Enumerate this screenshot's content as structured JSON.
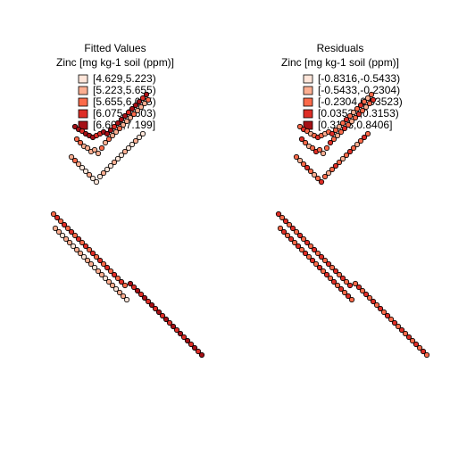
{
  "chart_data": [
    {
      "type": "scatter",
      "title": "Fitted Values",
      "subtitle": "Zinc [mg kg-1 soil (ppm)]",
      "legend": {
        "placement": "top",
        "entries": [
          "[4.629,5.223)",
          "[5.223,5.655)",
          "[5.655,6.075)",
          "[6.075,6.603)",
          "[6.603,7.199]"
        ]
      },
      "colors": [
        "#fee5d9",
        "#fcae91",
        "#fb6a4a",
        "#de2d26",
        "#a50f15"
      ],
      "points": [
        [
          84,
          142,
          4
        ],
        [
          88,
          145,
          4
        ],
        [
          92,
          147,
          3
        ],
        [
          96,
          150,
          4
        ],
        [
          100,
          152,
          4
        ],
        [
          104,
          154,
          4
        ],
        [
          108,
          152,
          3
        ],
        [
          112,
          150,
          3
        ],
        [
          116,
          148,
          4
        ],
        [
          120,
          150,
          4
        ],
        [
          124,
          146,
          4
        ],
        [
          128,
          142,
          3
        ],
        [
          132,
          138,
          4
        ],
        [
          136,
          134,
          4
        ],
        [
          140,
          130,
          4
        ],
        [
          144,
          126,
          3
        ],
        [
          148,
          122,
          4
        ],
        [
          152,
          118,
          4
        ],
        [
          156,
          114,
          4
        ],
        [
          160,
          110,
          3
        ],
        [
          164,
          106,
          4
        ],
        [
          86,
          156,
          2
        ],
        [
          90,
          160,
          2
        ],
        [
          94,
          164,
          1
        ],
        [
          98,
          166,
          1
        ],
        [
          102,
          170,
          1
        ],
        [
          106,
          168,
          1
        ],
        [
          110,
          172,
          1
        ],
        [
          114,
          166,
          2
        ],
        [
          118,
          160,
          1
        ],
        [
          122,
          156,
          2
        ],
        [
          126,
          152,
          1
        ],
        [
          130,
          148,
          1
        ],
        [
          134,
          144,
          2
        ],
        [
          138,
          140,
          1
        ],
        [
          142,
          136,
          1
        ],
        [
          146,
          132,
          1
        ],
        [
          150,
          128,
          2
        ],
        [
          154,
          124,
          1
        ],
        [
          158,
          120,
          1
        ],
        [
          162,
          116,
          1
        ],
        [
          166,
          112,
          2
        ],
        [
          80,
          176,
          1
        ],
        [
          84,
          180,
          2
        ],
        [
          88,
          184,
          1
        ],
        [
          92,
          188,
          0
        ],
        [
          96,
          192,
          0
        ],
        [
          100,
          196,
          1
        ],
        [
          104,
          200,
          0
        ],
        [
          108,
          204,
          0
        ],
        [
          112,
          198,
          0
        ],
        [
          116,
          194,
          1
        ],
        [
          120,
          190,
          0
        ],
        [
          124,
          186,
          0
        ],
        [
          128,
          182,
          1
        ],
        [
          132,
          178,
          0
        ],
        [
          136,
          174,
          0
        ],
        [
          140,
          170,
          1
        ],
        [
          144,
          166,
          0
        ],
        [
          148,
          162,
          0
        ],
        [
          152,
          158,
          1
        ],
        [
          156,
          154,
          0
        ],
        [
          160,
          150,
          0
        ],
        [
          60,
          240,
          2
        ],
        [
          64,
          244,
          3
        ],
        [
          68,
          248,
          2
        ],
        [
          72,
          252,
          3
        ],
        [
          76,
          256,
          2
        ],
        [
          80,
          260,
          3
        ],
        [
          84,
          264,
          2
        ],
        [
          88,
          268,
          3
        ],
        [
          92,
          272,
          2
        ],
        [
          96,
          276,
          3
        ],
        [
          100,
          280,
          2
        ],
        [
          104,
          284,
          3
        ],
        [
          108,
          288,
          2
        ],
        [
          112,
          292,
          3
        ],
        [
          116,
          296,
          2
        ],
        [
          120,
          300,
          3
        ],
        [
          124,
          304,
          2
        ],
        [
          128,
          308,
          3
        ],
        [
          132,
          312,
          2
        ],
        [
          136,
          316,
          3
        ],
        [
          140,
          320,
          2
        ],
        [
          62,
          256,
          1
        ],
        [
          66,
          260,
          1
        ],
        [
          70,
          264,
          0
        ],
        [
          74,
          268,
          1
        ],
        [
          78,
          272,
          1
        ],
        [
          82,
          276,
          0
        ],
        [
          86,
          280,
          1
        ],
        [
          90,
          284,
          1
        ],
        [
          94,
          288,
          0
        ],
        [
          98,
          292,
          1
        ],
        [
          102,
          296,
          1
        ],
        [
          106,
          300,
          0
        ],
        [
          110,
          304,
          1
        ],
        [
          114,
          308,
          1
        ],
        [
          118,
          312,
          0
        ],
        [
          122,
          316,
          1
        ],
        [
          126,
          320,
          1
        ],
        [
          130,
          324,
          0
        ],
        [
          134,
          328,
          1
        ],
        [
          138,
          332,
          1
        ],
        [
          142,
          336,
          0
        ],
        [
          146,
          318,
          4
        ],
        [
          150,
          322,
          3
        ],
        [
          154,
          326,
          4
        ],
        [
          158,
          330,
          3
        ],
        [
          162,
          334,
          4
        ],
        [
          166,
          338,
          3
        ],
        [
          170,
          342,
          4
        ],
        [
          174,
          346,
          3
        ],
        [
          178,
          350,
          4
        ],
        [
          182,
          354,
          3
        ],
        [
          186,
          358,
          4
        ],
        [
          190,
          362,
          3
        ],
        [
          194,
          366,
          4
        ],
        [
          198,
          370,
          3
        ],
        [
          202,
          374,
          4
        ],
        [
          206,
          378,
          3
        ],
        [
          210,
          382,
          4
        ],
        [
          214,
          386,
          3
        ],
        [
          218,
          390,
          4
        ],
        [
          222,
          394,
          3
        ],
        [
          226,
          398,
          4
        ]
      ]
    },
    {
      "type": "scatter",
      "title": "Residuals",
      "subtitle": "Zinc [mg kg-1 soil (ppm)]",
      "legend": {
        "placement": "top",
        "entries": [
          "[-0.8316,-0.5433)",
          "[-0.5433,-0.2304)",
          "[-0.2304,0.03523)",
          "[0.03523,0.3153)",
          "[0.3153,0.8406]"
        ]
      },
      "colors": [
        "#fee5d9",
        "#fcae91",
        "#fb6a4a",
        "#de2d26",
        "#a50f15"
      ],
      "points": [
        [
          84,
          142,
          2
        ],
        [
          88,
          145,
          3
        ],
        [
          92,
          147,
          2
        ],
        [
          96,
          150,
          1
        ],
        [
          100,
          152,
          2
        ],
        [
          104,
          154,
          3
        ],
        [
          108,
          152,
          2
        ],
        [
          112,
          150,
          1
        ],
        [
          116,
          148,
          2
        ],
        [
          120,
          150,
          3
        ],
        [
          124,
          146,
          2
        ],
        [
          128,
          142,
          1
        ],
        [
          132,
          138,
          2
        ],
        [
          136,
          134,
          3
        ],
        [
          140,
          130,
          2
        ],
        [
          144,
          126,
          1
        ],
        [
          148,
          122,
          2
        ],
        [
          152,
          118,
          3
        ],
        [
          156,
          114,
          2
        ],
        [
          160,
          110,
          1
        ],
        [
          164,
          106,
          2
        ],
        [
          86,
          156,
          3
        ],
        [
          90,
          160,
          2
        ],
        [
          94,
          164,
          1
        ],
        [
          98,
          166,
          2
        ],
        [
          102,
          170,
          3
        ],
        [
          106,
          168,
          2
        ],
        [
          110,
          172,
          1
        ],
        [
          114,
          166,
          2
        ],
        [
          118,
          160,
          3
        ],
        [
          122,
          156,
          2
        ],
        [
          126,
          152,
          1
        ],
        [
          130,
          148,
          2
        ],
        [
          134,
          144,
          3
        ],
        [
          138,
          140,
          2
        ],
        [
          142,
          136,
          1
        ],
        [
          146,
          132,
          2
        ],
        [
          150,
          128,
          3
        ],
        [
          154,
          124,
          2
        ],
        [
          158,
          120,
          1
        ],
        [
          162,
          116,
          2
        ],
        [
          166,
          112,
          3
        ],
        [
          80,
          176,
          2
        ],
        [
          84,
          180,
          1
        ],
        [
          88,
          184,
          2
        ],
        [
          92,
          188,
          3
        ],
        [
          96,
          192,
          2
        ],
        [
          100,
          196,
          1
        ],
        [
          104,
          200,
          2
        ],
        [
          108,
          204,
          3
        ],
        [
          112,
          198,
          2
        ],
        [
          116,
          194,
          1
        ],
        [
          120,
          190,
          2
        ],
        [
          124,
          186,
          3
        ],
        [
          128,
          182,
          2
        ],
        [
          132,
          178,
          1
        ],
        [
          136,
          174,
          2
        ],
        [
          140,
          170,
          3
        ],
        [
          144,
          166,
          2
        ],
        [
          148,
          162,
          1
        ],
        [
          152,
          158,
          2
        ],
        [
          156,
          154,
          3
        ],
        [
          160,
          150,
          2
        ],
        [
          60,
          240,
          3
        ],
        [
          64,
          244,
          2
        ],
        [
          68,
          248,
          3
        ],
        [
          72,
          252,
          2
        ],
        [
          76,
          256,
          3
        ],
        [
          80,
          260,
          2
        ],
        [
          84,
          264,
          3
        ],
        [
          88,
          268,
          2
        ],
        [
          92,
          272,
          3
        ],
        [
          96,
          276,
          2
        ],
        [
          100,
          280,
          3
        ],
        [
          104,
          284,
          2
        ],
        [
          108,
          288,
          3
        ],
        [
          112,
          292,
          2
        ],
        [
          116,
          296,
          3
        ],
        [
          120,
          300,
          2
        ],
        [
          124,
          304,
          3
        ],
        [
          128,
          308,
          2
        ],
        [
          132,
          312,
          3
        ],
        [
          136,
          316,
          2
        ],
        [
          140,
          320,
          3
        ],
        [
          62,
          256,
          2
        ],
        [
          66,
          260,
          3
        ],
        [
          70,
          264,
          2
        ],
        [
          74,
          268,
          3
        ],
        [
          78,
          272,
          2
        ],
        [
          82,
          276,
          3
        ],
        [
          86,
          280,
          2
        ],
        [
          90,
          284,
          3
        ],
        [
          94,
          288,
          2
        ],
        [
          98,
          292,
          3
        ],
        [
          102,
          296,
          2
        ],
        [
          106,
          300,
          3
        ],
        [
          110,
          304,
          2
        ],
        [
          114,
          308,
          3
        ],
        [
          118,
          312,
          2
        ],
        [
          122,
          316,
          3
        ],
        [
          126,
          320,
          2
        ],
        [
          130,
          324,
          3
        ],
        [
          134,
          328,
          2
        ],
        [
          138,
          332,
          3
        ],
        [
          142,
          336,
          2
        ],
        [
          146,
          318,
          2
        ],
        [
          150,
          322,
          3
        ],
        [
          154,
          326,
          2
        ],
        [
          158,
          330,
          3
        ],
        [
          162,
          334,
          2
        ],
        [
          166,
          338,
          3
        ],
        [
          170,
          342,
          2
        ],
        [
          174,
          346,
          3
        ],
        [
          178,
          350,
          2
        ],
        [
          182,
          354,
          3
        ],
        [
          186,
          358,
          2
        ],
        [
          190,
          362,
          3
        ],
        [
          194,
          366,
          2
        ],
        [
          198,
          370,
          3
        ],
        [
          202,
          374,
          2
        ],
        [
          206,
          378,
          3
        ],
        [
          210,
          382,
          2
        ],
        [
          214,
          386,
          3
        ],
        [
          218,
          390,
          2
        ],
        [
          222,
          394,
          3
        ],
        [
          226,
          398,
          2
        ]
      ]
    }
  ]
}
